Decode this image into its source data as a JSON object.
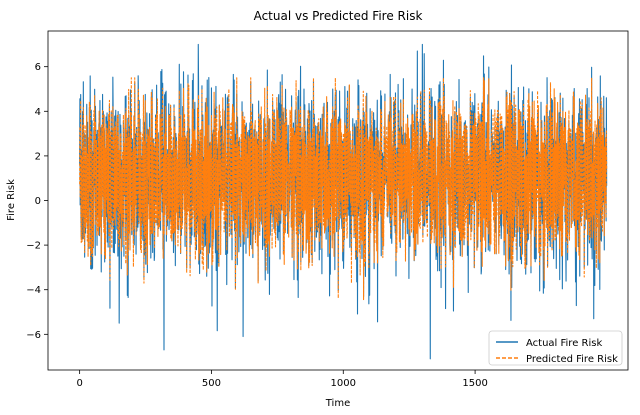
{
  "chart_data": {
    "type": "line",
    "title": "Actual vs Predicted Fire Risk",
    "xlabel": "Time",
    "ylabel": "Fire Risk",
    "xlim": [
      -120,
      2080
    ],
    "ylim": [
      -7.6,
      7.6
    ],
    "xticks": [
      0,
      500,
      1000,
      1500
    ],
    "yticks": [
      -6,
      -4,
      -2,
      0,
      2,
      4,
      6
    ],
    "x_range": [
      0,
      1999
    ],
    "grid": false,
    "legend_position": "lower-right",
    "series": [
      {
        "name": "Actual Fire Risk",
        "color": "#1f77b4",
        "line_style": "solid",
        "summary": {
          "mean": 1.0,
          "min": -7.1,
          "max": 7.0
        },
        "notable_points": [
          {
            "x": 150,
            "y": -5.5
          },
          {
            "x": 320,
            "y": -6.7
          },
          {
            "x": 450,
            "y": 7.0
          },
          {
            "x": 620,
            "y": -6.1
          },
          {
            "x": 1300,
            "y": 7.0
          },
          {
            "x": 1330,
            "y": -7.1
          },
          {
            "x": 1950,
            "y": -5.3
          }
        ]
      },
      {
        "name": "Predicted Fire Risk",
        "color": "#ff7f0e",
        "line_style": "dashed",
        "summary": {
          "mean": 1.0,
          "min": -5.5,
          "max": 5.5
        }
      }
    ]
  }
}
